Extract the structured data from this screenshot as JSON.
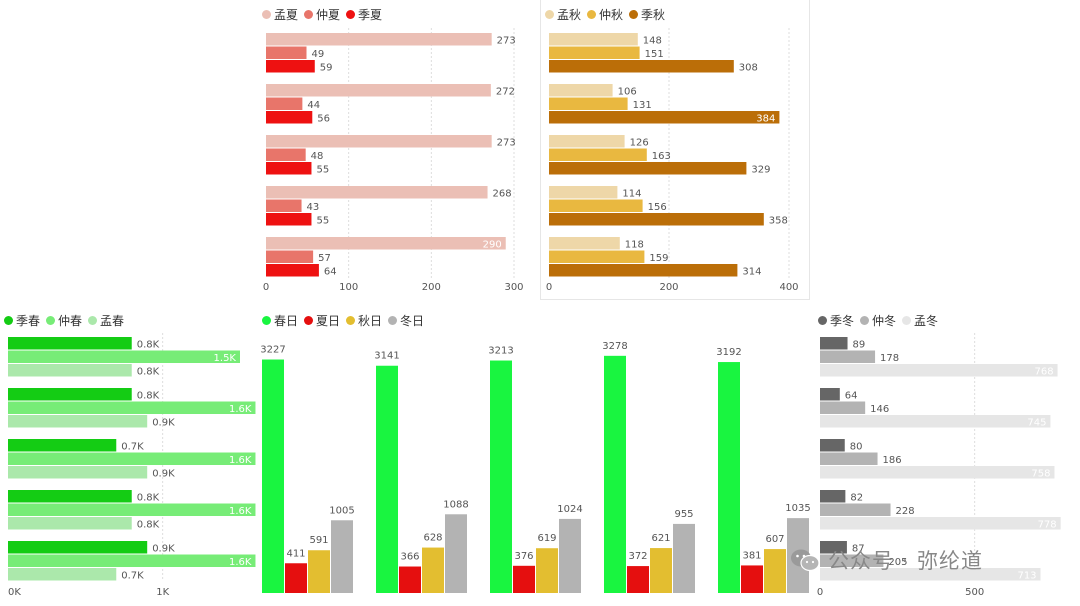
{
  "colors": {
    "summer": [
      "#ebbfb5",
      "#e8756a",
      "#ee1111"
    ],
    "autumn": [
      "#eed7a8",
      "#e9b840",
      "#bb6e08"
    ],
    "spring": [
      "#14cc14",
      "#77ec77",
      "#abe8ab"
    ],
    "day": [
      "#19f540",
      "#e50f0f",
      "#e3be30",
      "#b3b3b3"
    ],
    "winter": [
      "#666666",
      "#b3b3b3",
      "#e6e6e6"
    ]
  },
  "watermark": {
    "text": "公众号 · 弥纶道",
    "icon": "wechat-icon"
  },
  "chart_data": [
    {
      "id": "summer",
      "type": "bar",
      "orientation": "horizontal",
      "series": [
        {
          "name": "孟夏",
          "values": [
            273,
            272,
            273,
            268,
            290
          ]
        },
        {
          "name": "仲夏",
          "values": [
            49,
            44,
            48,
            43,
            57
          ]
        },
        {
          "name": "季夏",
          "values": [
            59,
            56,
            55,
            55,
            64
          ]
        }
      ],
      "axis": {
        "ticks": [
          "0",
          "100",
          "200",
          "300"
        ],
        "tick_values": [
          0,
          100,
          200,
          300
        ],
        "range": [
          0,
          300
        ]
      },
      "grid": true
    },
    {
      "id": "autumn",
      "type": "bar",
      "orientation": "horizontal",
      "series": [
        {
          "name": "孟秋",
          "values": [
            148,
            106,
            126,
            114,
            118
          ]
        },
        {
          "name": "仲秋",
          "values": [
            151,
            131,
            163,
            156,
            159
          ]
        },
        {
          "name": "季秋",
          "values": [
            308,
            384,
            329,
            358,
            314
          ]
        }
      ],
      "axis": {
        "ticks": [
          "0",
          "200",
          "400"
        ],
        "tick_values": [
          0,
          200,
          400
        ],
        "range": [
          0,
          400
        ]
      },
      "grid": true
    },
    {
      "id": "spring",
      "type": "bar",
      "orientation": "horizontal",
      "series": [
        {
          "name": "季春",
          "values": [
            800,
            800,
            700,
            800,
            900
          ],
          "labels": [
            "0.8K",
            "0.8K",
            "0.7K",
            "0.8K",
            "0.9K"
          ]
        },
        {
          "name": "仲春",
          "values": [
            1500,
            1600,
            1600,
            1600,
            1600
          ],
          "labels": [
            "1.5K",
            "1.6K",
            "1.6K",
            "1.6K",
            "1.6K"
          ]
        },
        {
          "name": "孟春",
          "values": [
            800,
            900,
            900,
            800,
            700
          ],
          "labels": [
            "0.8K",
            "0.9K",
            "0.9K",
            "0.8K",
            "0.7K"
          ]
        }
      ],
      "axis": {
        "ticks": [
          "0K",
          "1K"
        ],
        "tick_values": [
          0,
          1000
        ],
        "range": [
          0,
          1500
        ]
      },
      "grid": true
    },
    {
      "id": "day",
      "type": "bar",
      "orientation": "vertical",
      "series": [
        {
          "name": "春日",
          "values": [
            3227,
            3141,
            3213,
            3278,
            3192
          ]
        },
        {
          "name": "夏日",
          "values": [
            411,
            366,
            376,
            372,
            381
          ]
        },
        {
          "name": "秋日",
          "values": [
            591,
            628,
            619,
            621,
            607
          ]
        },
        {
          "name": "冬日",
          "values": [
            1005,
            1088,
            1024,
            955,
            1035
          ]
        }
      ],
      "axis": {
        "range": [
          0,
          3400
        ]
      },
      "grid": false
    },
    {
      "id": "winter",
      "type": "bar",
      "orientation": "horizontal",
      "series": [
        {
          "name": "季冬",
          "values": [
            89,
            64,
            80,
            82,
            87
          ]
        },
        {
          "name": "仲冬",
          "values": [
            178,
            146,
            186,
            228,
            205
          ]
        },
        {
          "name": "孟冬",
          "values": [
            768,
            745,
            758,
            778,
            713
          ]
        }
      ],
      "axis": {
        "ticks": [
          "0",
          "500"
        ],
        "tick_values": [
          0,
          500
        ],
        "range": [
          0,
          750
        ]
      },
      "grid": true
    }
  ]
}
